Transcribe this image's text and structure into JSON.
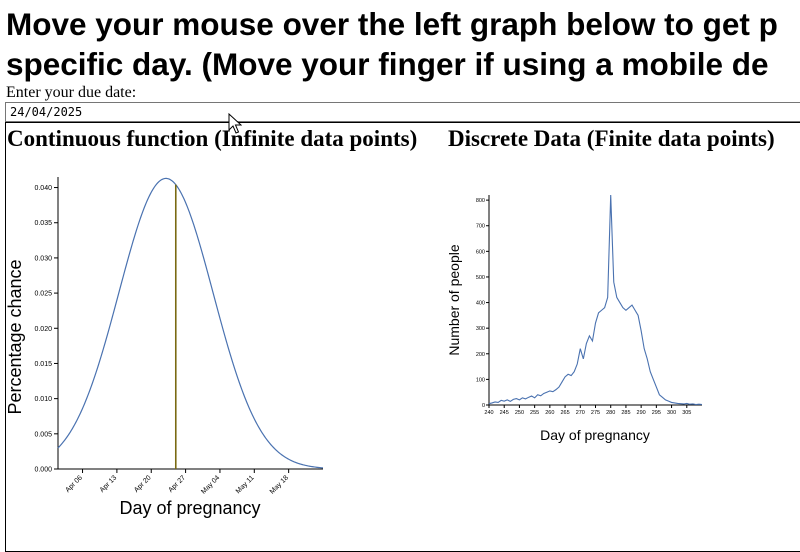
{
  "heading_line1": "Move your mouse over the left graph below to get p",
  "heading_line2": "specific day. (Move your finger if using a mobile de",
  "due_date_label": "Enter your due date:",
  "due_date_value": "24/04/2025",
  "chart_data": [
    {
      "type": "line",
      "title": "Continuous function (Infinite data points)",
      "xlabel": "Day of pregnancy",
      "ylabel": "Percentage chance",
      "x_tick_labels": [
        "Apr 06",
        "Apr 13",
        "Apr 20",
        "Apr 27",
        "May 04",
        "May 11",
        "May 18"
      ],
      "xlim": [
        "2025-04-01",
        "2025-05-25"
      ],
      "ylim": [
        0,
        0.0415
      ],
      "y_ticks": [
        "0.000",
        "0.005",
        "0.010",
        "0.015",
        "0.020",
        "0.025",
        "0.030",
        "0.035",
        "0.040"
      ],
      "series": [
        {
          "distribution": "normal",
          "mean": "2025-04-23",
          "sd_days": 9.6,
          "peak": 0.0413
        }
      ],
      "marker_date": "2025-04-25",
      "colors": {
        "line": "#4a72b0",
        "marker": "#7a6a12"
      }
    },
    {
      "type": "line",
      "title": "Discrete Data (Finite data points)",
      "xlabel": "Day of pregnancy",
      "ylabel": "Number of people",
      "xlim": [
        240,
        310
      ],
      "ylim": [
        0,
        820
      ],
      "x_ticks": [
        240,
        245,
        250,
        255,
        260,
        265,
        270,
        275,
        280,
        285,
        290,
        295,
        300,
        305
      ],
      "y_ticks": [
        0,
        100,
        200,
        300,
        400,
        500,
        600,
        700,
        800
      ],
      "x": [
        240,
        241,
        242,
        243,
        244,
        245,
        246,
        247,
        248,
        249,
        250,
        251,
        252,
        253,
        254,
        255,
        256,
        257,
        258,
        259,
        260,
        261,
        262,
        263,
        264,
        265,
        266,
        267,
        268,
        269,
        270,
        271,
        272,
        273,
        274,
        275,
        276,
        277,
        278,
        279,
        280,
        281,
        282,
        283,
        284,
        285,
        286,
        287,
        288,
        289,
        290,
        291,
        292,
        293,
        294,
        295,
        296,
        297,
        298,
        299,
        300,
        301,
        302,
        303,
        304,
        305,
        306,
        307,
        308,
        309,
        310
      ],
      "values": [
        5,
        8,
        12,
        10,
        18,
        15,
        20,
        14,
        22,
        25,
        20,
        28,
        24,
        30,
        35,
        28,
        40,
        36,
        45,
        50,
        55,
        52,
        60,
        70,
        90,
        110,
        120,
        115,
        130,
        160,
        220,
        180,
        240,
        270,
        250,
        320,
        360,
        370,
        380,
        420,
        820,
        480,
        420,
        400,
        380,
        370,
        380,
        390,
        370,
        350,
        290,
        220,
        180,
        130,
        100,
        70,
        40,
        30,
        20,
        15,
        10,
        8,
        6,
        5,
        4,
        6,
        3,
        4,
        2,
        3,
        2
      ],
      "colors": {
        "line": "#4a72b0"
      }
    }
  ]
}
